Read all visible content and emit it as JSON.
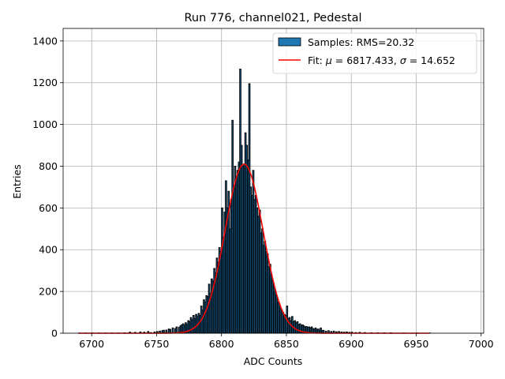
{
  "chart_data": {
    "type": "bar",
    "title": "Run 776, channel021, Pedestal",
    "xlabel": "ADC Counts",
    "ylabel": "Entries",
    "xlim": [
      6678,
      7002
    ],
    "ylim": [
      0,
      1460
    ],
    "xticks": [
      6700,
      6750,
      6800,
      6850,
      6900,
      6950,
      7000
    ],
    "yticks": [
      0,
      200,
      400,
      600,
      800,
      1000,
      1200,
      1400
    ],
    "grid": true,
    "legend_position": "top-right",
    "legend": [
      {
        "label": "Samples: RMS=20.32",
        "kind": "patch",
        "color": "#1f77b4"
      },
      {
        "label_prefix": "Fit: ",
        "mu_symbol": "μ",
        "mu_text": " = 6817.433, ",
        "sigma_symbol": "σ",
        "sigma_text": " = 14.652",
        "kind": "line",
        "color": "#ff0000"
      }
    ],
    "histogram": {
      "bin_width": 1,
      "bins": [
        [
          6690,
          1
        ],
        [
          6695,
          1
        ],
        [
          6700,
          1
        ],
        [
          6705,
          1
        ],
        [
          6710,
          1
        ],
        [
          6715,
          1
        ],
        [
          6720,
          1
        ],
        [
          6725,
          2
        ],
        [
          6729,
          5
        ],
        [
          6733,
          4
        ],
        [
          6737,
          6
        ],
        [
          6740,
          5
        ],
        [
          6743,
          8
        ],
        [
          6745,
          3
        ],
        [
          6748,
          6
        ],
        [
          6750,
          8
        ],
        [
          6752,
          10
        ],
        [
          6754,
          12
        ],
        [
          6755,
          14
        ],
        [
          6757,
          15
        ],
        [
          6759,
          20
        ],
        [
          6760,
          18
        ],
        [
          6762,
          25
        ],
        [
          6764,
          22
        ],
        [
          6765,
          30
        ],
        [
          6767,
          28
        ],
        [
          6768,
          35
        ],
        [
          6769,
          40
        ],
        [
          6770,
          45
        ],
        [
          6771,
          38
        ],
        [
          6772,
          50
        ],
        [
          6773,
          42
        ],
        [
          6774,
          60
        ],
        [
          6775,
          55
        ],
        [
          6776,
          75
        ],
        [
          6777,
          65
        ],
        [
          6778,
          85
        ],
        [
          6779,
          70
        ],
        [
          6780,
          90
        ],
        [
          6781,
          80
        ],
        [
          6782,
          95
        ],
        [
          6783,
          85
        ],
        [
          6784,
          130
        ],
        [
          6785,
          110
        ],
        [
          6786,
          160
        ],
        [
          6787,
          150
        ],
        [
          6788,
          180
        ],
        [
          6789,
          175
        ],
        [
          6790,
          235
        ],
        [
          6791,
          190
        ],
        [
          6792,
          260
        ],
        [
          6793,
          250
        ],
        [
          6794,
          310
        ],
        [
          6795,
          290
        ],
        [
          6796,
          360
        ],
        [
          6797,
          340
        ],
        [
          6798,
          410
        ],
        [
          6799,
          390
        ],
        [
          6800,
          600
        ],
        [
          6801,
          460
        ],
        [
          6802,
          580
        ],
        [
          6803,
          730
        ],
        [
          6804,
          600
        ],
        [
          6805,
          680
        ],
        [
          6806,
          500
        ],
        [
          6807,
          640
        ],
        [
          6808,
          1020
        ],
        [
          6809,
          700
        ],
        [
          6810,
          800
        ],
        [
          6811,
          750
        ],
        [
          6812,
          780
        ],
        [
          6813,
          820
        ],
        [
          6814,
          1265
        ],
        [
          6815,
          900
        ],
        [
          6816,
          800
        ],
        [
          6817,
          810
        ],
        [
          6818,
          960
        ],
        [
          6819,
          900
        ],
        [
          6820,
          830
        ],
        [
          6821,
          1195
        ],
        [
          6822,
          700
        ],
        [
          6823,
          660
        ],
        [
          6824,
          780
        ],
        [
          6825,
          640
        ],
        [
          6826,
          660
        ],
        [
          6827,
          600
        ],
        [
          6828,
          560
        ],
        [
          6829,
          590
        ],
        [
          6830,
          480
        ],
        [
          6831,
          500
        ],
        [
          6832,
          420
        ],
        [
          6833,
          440
        ],
        [
          6834,
          390
        ],
        [
          6835,
          380
        ],
        [
          6836,
          320
        ],
        [
          6837,
          330
        ],
        [
          6838,
          280
        ],
        [
          6839,
          250
        ],
        [
          6840,
          220
        ],
        [
          6841,
          200
        ],
        [
          6842,
          180
        ],
        [
          6843,
          150
        ],
        [
          6844,
          140
        ],
        [
          6845,
          120
        ],
        [
          6846,
          110
        ],
        [
          6847,
          100
        ],
        [
          6848,
          90
        ],
        [
          6849,
          85
        ],
        [
          6850,
          130
        ],
        [
          6851,
          70
        ],
        [
          6852,
          75
        ],
        [
          6853,
          60
        ],
        [
          6854,
          80
        ],
        [
          6855,
          55
        ],
        [
          6856,
          60
        ],
        [
          6857,
          50
        ],
        [
          6858,
          55
        ],
        [
          6859,
          42
        ],
        [
          6860,
          45
        ],
        [
          6861,
          38
        ],
        [
          6862,
          40
        ],
        [
          6863,
          35
        ],
        [
          6864,
          30
        ],
        [
          6865,
          32
        ],
        [
          6866,
          28
        ],
        [
          6867,
          30
        ],
        [
          6868,
          25
        ],
        [
          6869,
          30
        ],
        [
          6870,
          22
        ],
        [
          6871,
          20
        ],
        [
          6872,
          25
        ],
        [
          6873,
          18
        ],
        [
          6874,
          20
        ],
        [
          6875,
          15
        ],
        [
          6876,
          25
        ],
        [
          6877,
          12
        ],
        [
          6878,
          14
        ],
        [
          6880,
          10
        ],
        [
          6882,
          12
        ],
        [
          6884,
          8
        ],
        [
          6886,
          10
        ],
        [
          6888,
          7
        ],
        [
          6890,
          8
        ],
        [
          6892,
          6
        ],
        [
          6894,
          5
        ],
        [
          6896,
          6
        ],
        [
          6898,
          4
        ],
        [
          6900,
          5
        ],
        [
          6903,
          3
        ],
        [
          6906,
          4
        ],
        [
          6910,
          3
        ],
        [
          6915,
          2
        ],
        [
          6920,
          2
        ],
        [
          6925,
          2
        ],
        [
          6930,
          2
        ],
        [
          6940,
          1
        ],
        [
          6950,
          1
        ],
        [
          6960,
          1
        ]
      ]
    },
    "fit": {
      "model": "gaussian",
      "mu": 6817.433,
      "sigma": 14.652,
      "amplitude": 810,
      "x_range": [
        6690,
        6960
      ]
    }
  }
}
